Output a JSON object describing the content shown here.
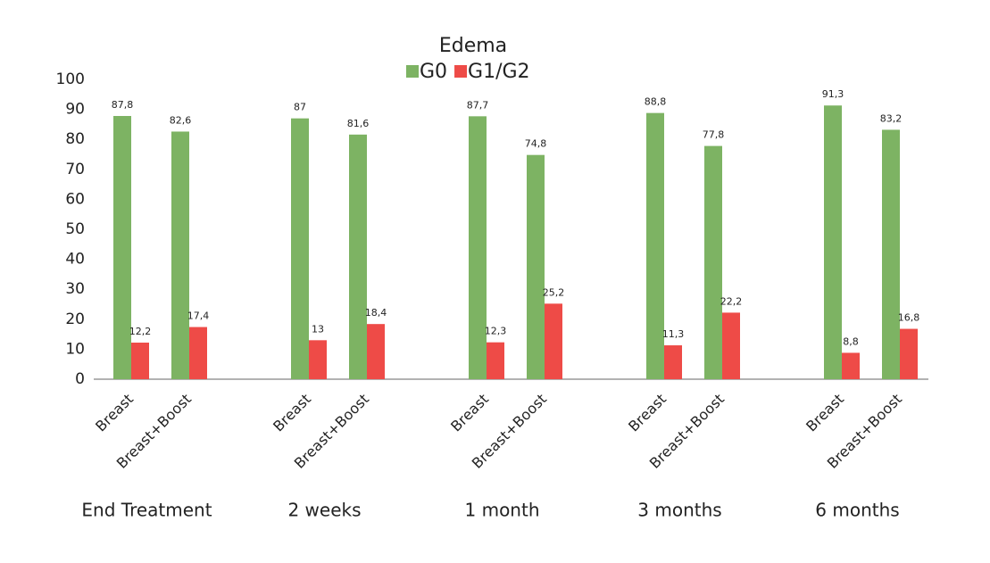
{
  "chart_data": {
    "type": "bar",
    "title": "Edema",
    "categories": [
      "Breast",
      "Breast+Boost",
      "Breast",
      "Breast+Boost",
      "Breast",
      "Breast+Boost",
      "Breast",
      "Breast+Boost",
      "Breast",
      "Breast+Boost"
    ],
    "groups": [
      "End Treatment",
      "2 weeks",
      "1 month",
      "3 months",
      "6 months"
    ],
    "series": [
      {
        "name": "G0",
        "color": "#7db363",
        "values": [
          87.8,
          82.6,
          87,
          81.6,
          87.7,
          74.8,
          88.8,
          77.8,
          91.3,
          83.2
        ],
        "value_labels": [
          "87,8",
          "82,6",
          "87",
          "81,6",
          "87,7",
          "74,8",
          "88,8",
          "77,8",
          "91,3",
          "83,2"
        ]
      },
      {
        "name": "G1/G2",
        "color": "#ee4b47",
        "values": [
          12.2,
          17.4,
          13,
          18.4,
          12.3,
          25.2,
          11.3,
          22.2,
          8.8,
          16.8
        ],
        "value_labels": [
          "12,2",
          "17,4",
          "13",
          "18,4",
          "12,3",
          "25,2",
          "11,3",
          "22,2",
          "8,8",
          "16,8"
        ]
      }
    ],
    "ylim": [
      0,
      100
    ],
    "yticks": [
      0,
      10,
      20,
      30,
      40,
      50,
      60,
      70,
      80,
      90,
      100
    ],
    "grid": false,
    "legend": "top"
  }
}
